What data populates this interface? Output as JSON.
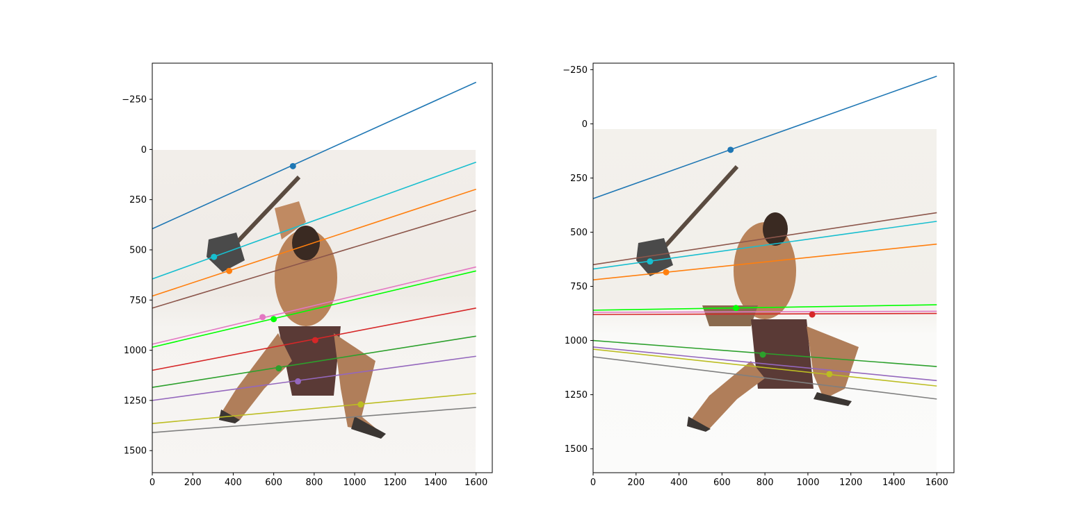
{
  "chart_data": [
    {
      "type": "line",
      "title": "",
      "xlabel": "",
      "ylabel": "",
      "xlim": [
        0,
        1680
      ],
      "ylim": [
        1610,
        -430
      ],
      "y_inverted": true,
      "xticks": [
        0,
        200,
        400,
        600,
        800,
        1000,
        1200,
        1400,
        1600
      ],
      "yticks": [
        -250,
        0,
        250,
        500,
        750,
        1000,
        1250,
        1500
      ],
      "grid": false,
      "legend": "none",
      "background_image": "photo of an action figure (barbarian warrior swinging a hammer), image extent x 0-1600, y 0-1600",
      "series": [
        {
          "color": "#1f77b4",
          "x": [
            0,
            1600
          ],
          "y": [
            395,
            -335
          ],
          "point": [
            695,
            83
          ]
        },
        {
          "color": "#17becf",
          "x": [
            0,
            1600
          ],
          "y": [
            645,
            63
          ],
          "point": [
            305,
            535
          ]
        },
        {
          "color": "#ff7f0e",
          "x": [
            0,
            1600
          ],
          "y": [
            730,
            198
          ],
          "point": [
            380,
            605
          ]
        },
        {
          "color": "#8c564b",
          "x": [
            0,
            1600
          ],
          "y": [
            790,
            303
          ],
          "point": [
            null,
            null
          ]
        },
        {
          "color": "#e377c2",
          "x": [
            0,
            1600
          ],
          "y": [
            970,
            585
          ],
          "point": [
            545,
            835
          ]
        },
        {
          "color": "#00ff00",
          "x": [
            0,
            1600
          ],
          "y": [
            985,
            605
          ],
          "point": [
            600,
            845
          ]
        },
        {
          "color": "#d62728",
          "x": [
            0,
            1600
          ],
          "y": [
            1100,
            790
          ],
          "point": [
            805,
            950
          ]
        },
        {
          "color": "#2ca02c",
          "x": [
            0,
            1600
          ],
          "y": [
            1185,
            930
          ],
          "point": [
            625,
            1090
          ]
        },
        {
          "color": "#9467bd",
          "x": [
            0,
            1600
          ],
          "y": [
            1250,
            1030
          ],
          "point": [
            720,
            1155
          ]
        },
        {
          "color": "#bcbd22",
          "x": [
            0,
            1600
          ],
          "y": [
            1365,
            1215
          ],
          "point": [
            1030,
            1270
          ]
        },
        {
          "color": "#7f7f7f",
          "x": [
            0,
            1600
          ],
          "y": [
            1410,
            1285
          ],
          "point": [
            null,
            null
          ]
        }
      ]
    },
    {
      "type": "line",
      "title": "",
      "xlabel": "",
      "ylabel": "",
      "xlim": [
        0,
        1680
      ],
      "ylim": [
        1610,
        -280
      ],
      "y_inverted": true,
      "xticks": [
        0,
        200,
        400,
        600,
        800,
        1000,
        1200,
        1400,
        1600
      ],
      "yticks": [
        -250,
        0,
        250,
        500,
        750,
        1000,
        1250,
        1500
      ],
      "grid": false,
      "legend": "none",
      "background_image": "photo of the same action figure from a different viewpoint, image extent x 0-1600, y 0-1600",
      "series": [
        {
          "color": "#1f77b4",
          "x": [
            0,
            1600
          ],
          "y": [
            345,
            -220
          ],
          "point": [
            640,
            120
          ]
        },
        {
          "color": "#17becf",
          "x": [
            0,
            1600
          ],
          "y": [
            670,
            450
          ],
          "point": [
            265,
            635
          ]
        },
        {
          "color": "#ff7f0e",
          "x": [
            0,
            1600
          ],
          "y": [
            720,
            555
          ],
          "point": [
            340,
            685
          ]
        },
        {
          "color": "#8c564b",
          "x": [
            0,
            1600
          ],
          "y": [
            650,
            410
          ],
          "point": [
            null,
            null
          ]
        },
        {
          "color": "#e377c2",
          "x": [
            0,
            1600
          ],
          "y": [
            870,
            865
          ],
          "point": [
            null,
            null
          ]
        },
        {
          "color": "#00ff00",
          "x": [
            0,
            1600
          ],
          "y": [
            860,
            835
          ],
          "point": [
            665,
            850
          ]
        },
        {
          "color": "#d62728",
          "x": [
            0,
            1600
          ],
          "y": [
            880,
            875
          ],
          "point": [
            1020,
            880
          ]
        },
        {
          "color": "#2ca02c",
          "x": [
            0,
            1600
          ],
          "y": [
            1000,
            1120
          ],
          "point": [
            790,
            1065
          ]
        },
        {
          "color": "#9467bd",
          "x": [
            0,
            1600
          ],
          "y": [
            1030,
            1185
          ],
          "point": [
            null,
            null
          ]
        },
        {
          "color": "#bcbd22",
          "x": [
            0,
            1600
          ],
          "y": [
            1040,
            1210
          ],
          "point": [
            1100,
            1155
          ]
        },
        {
          "color": "#7f7f7f",
          "x": [
            0,
            1600
          ],
          "y": [
            1075,
            1270
          ],
          "point": [
            null,
            null
          ]
        }
      ]
    }
  ]
}
